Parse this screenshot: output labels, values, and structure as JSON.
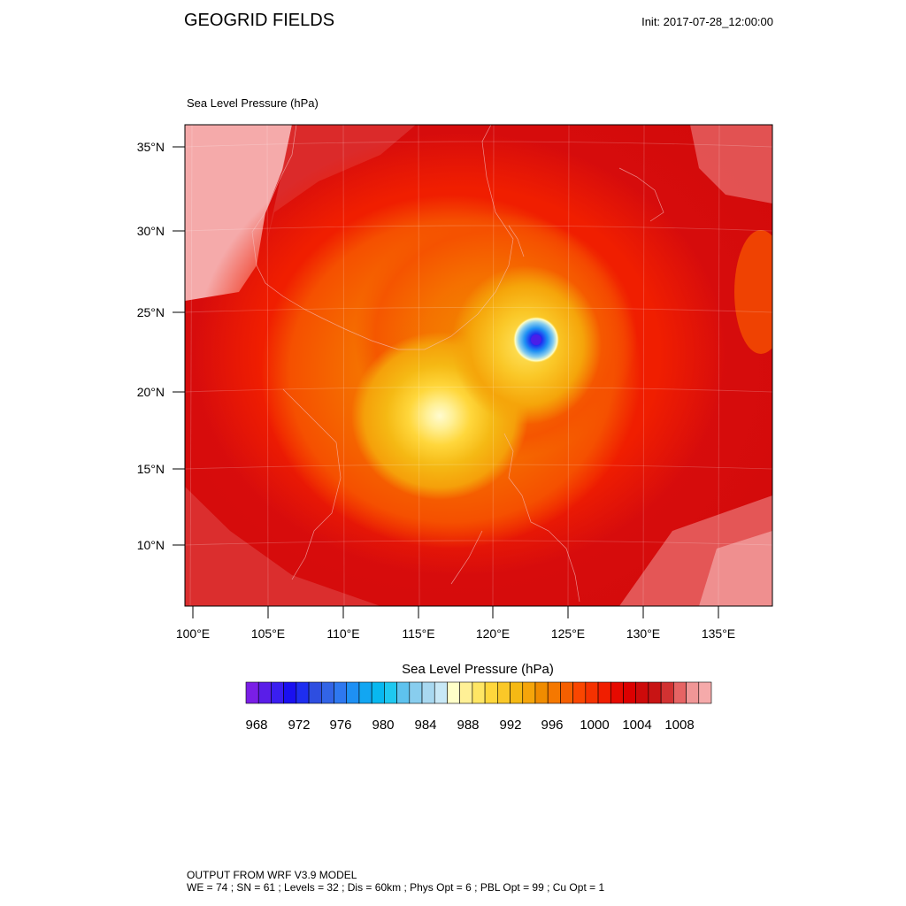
{
  "header": {
    "title": "GEOGRID FIELDS",
    "init": "Init: 2017-07-28_12:00:00"
  },
  "map": {
    "field_label": "Sea Level Pressure   (hPa)",
    "lat_ticks": [
      "35°N",
      "30°N",
      "25°N",
      "20°N",
      "15°N",
      "10°N"
    ],
    "lon_ticks": [
      "100°E",
      "105°E",
      "110°E",
      "115°E",
      "120°E",
      "125°E",
      "130°E",
      "135°E"
    ],
    "low_centers": [
      {
        "lon": 122.9,
        "lat": 23.2,
        "min_hpa": 968
      },
      {
        "lon": 116.7,
        "lat": 18.3,
        "min_hpa": 990
      }
    ]
  },
  "colorbar": {
    "title": "Sea Level Pressure  (hPa)",
    "labels": [
      "968",
      "972",
      "976",
      "980",
      "984",
      "988",
      "992",
      "996",
      "1000",
      "1004",
      "1008"
    ],
    "colors": [
      "#7a1ee6",
      "#5a1ee8",
      "#3a1ef0",
      "#1a10f0",
      "#1e2ef0",
      "#2e4ee0",
      "#3264e6",
      "#2e78f0",
      "#1e90f4",
      "#12a6f2",
      "#08b8f0",
      "#1ec8f0",
      "#5ec2ee",
      "#88cdee",
      "#a8d8f0",
      "#c8e8f6",
      "#ffffc8",
      "#fff096",
      "#ffe664",
      "#ffd73c",
      "#fac828",
      "#f5b914",
      "#f5a50a",
      "#f08c00",
      "#f57800",
      "#f55f00",
      "#fa4600",
      "#f53200",
      "#f01e00",
      "#e60a00",
      "#dc0000",
      "#cd0a0a",
      "#c81414",
      "#d23232",
      "#e66464",
      "#f09696",
      "#f5aaaa"
    ]
  },
  "footer": {
    "line1": "OUTPUT FROM WRF V3.9 MODEL",
    "line2": "WE = 74 ; SN = 61 ; Levels = 32 ; Dis = 60km ; Phys Opt = 6 ; PBL Opt = 99 ; Cu Opt = 1"
  }
}
